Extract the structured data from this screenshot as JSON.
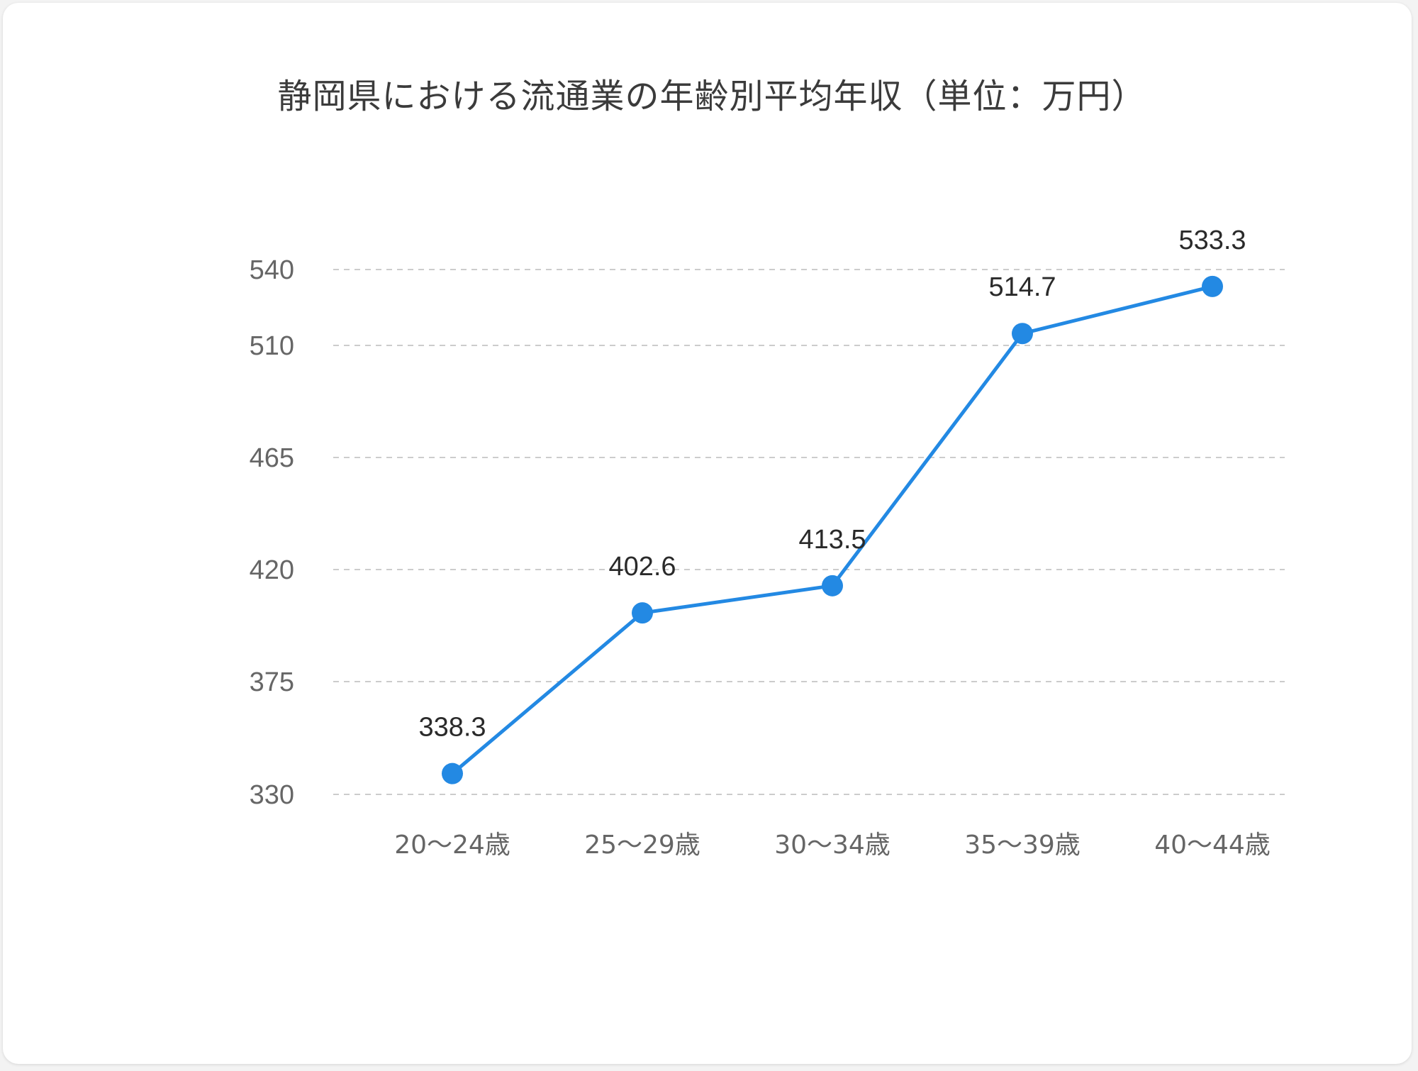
{
  "chart_data": {
    "type": "line",
    "title": "静岡県における流通業の年齢別平均年収（単位：万円）",
    "xlabel": "",
    "ylabel": "",
    "categories": [
      "20〜24歳",
      "25〜29歳",
      "30〜34歳",
      "35〜39歳",
      "40〜44歳"
    ],
    "series": [
      {
        "values": [
          338.3,
          402.6,
          413.5,
          514.7,
          533.3
        ]
      }
    ],
    "data_labels": [
      "338.3",
      "402.6",
      "413.5",
      "514.7",
      "533.3"
    ],
    "yticks": [
      330,
      375,
      420,
      465,
      510,
      540
    ],
    "ylim": [
      330,
      540
    ],
    "grid": true,
    "grid_style": "dashed",
    "legend": "none",
    "colors": {
      "line": "#2389e3",
      "grid": "#cccccc",
      "tick_text": "#666666",
      "data_label_text": "#2a2a2a"
    }
  }
}
